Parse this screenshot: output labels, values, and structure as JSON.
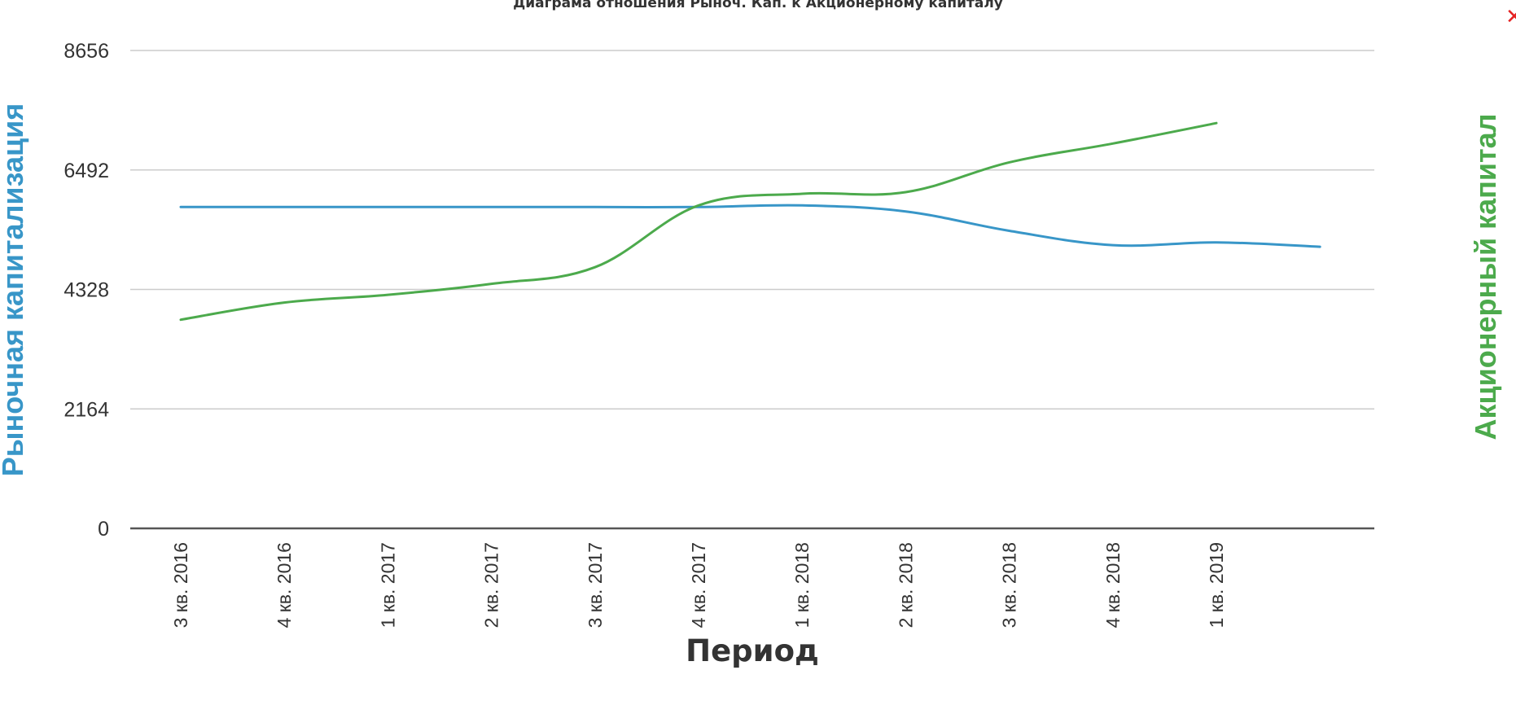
{
  "colors": {
    "market_cap": "#3896c8",
    "equity": "#4caa4c",
    "grid": "#cccccc",
    "axis": "#555555",
    "close": "#e52222"
  },
  "close_icon": "close-icon",
  "chart_data": {
    "type": "line",
    "title": "Диаграма отношения Рыноч. Кап. к Акционерному капиталу",
    "xlabel": "Период",
    "ylabel_left": "Рыночная капитализация",
    "ylabel_right": "Акционерный капитал",
    "yticks": [
      "8656",
      "6492",
      "4328",
      "2164",
      "0"
    ],
    "ylim": [
      0,
      8656
    ],
    "grid": true,
    "categories": [
      "3 кв. 2016",
      "4 кв. 2016",
      "1 кв. 2017",
      "2 кв. 2017",
      "3 кв. 2017",
      "4 кв. 2017",
      "1 кв. 2018",
      "2 кв. 2018",
      "3 кв. 2018",
      "4 кв. 2018",
      "1 кв. 2019",
      ""
    ],
    "series": [
      {
        "name": "Рыночная капитализация",
        "color": "#3896c8",
        "values": [
          5820,
          5820,
          5820,
          5820,
          5820,
          5820,
          5850,
          5740,
          5390,
          5130,
          5180,
          5100
        ]
      },
      {
        "name": "Акционерный капитал",
        "color": "#4caa4c",
        "values": [
          3780,
          4090,
          4230,
          4430,
          4730,
          5850,
          6060,
          6090,
          6630,
          6970,
          7340,
          null
        ]
      }
    ]
  }
}
